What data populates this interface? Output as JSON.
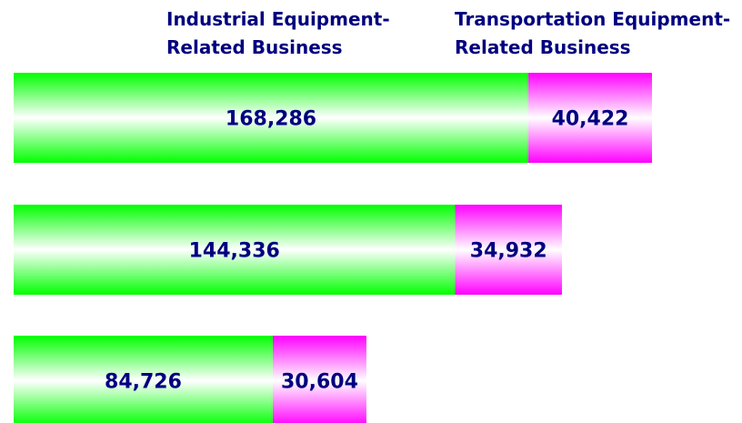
{
  "chart_data": {
    "type": "stacked-bar-horizontal",
    "categories": [
      null,
      null,
      null
    ],
    "series": [
      {
        "name": "Industrial Equipment-\nRelated Business",
        "color": "#00ff00",
        "values": [
          168286,
          144336,
          84726
        ],
        "value_labels": [
          "168,286",
          "144,336",
          "84,726"
        ]
      },
      {
        "name": "Transportation Equipment-\nRelated Business",
        "color": "#ff00ff",
        "values": [
          40422,
          34932,
          30604
        ],
        "value_labels": [
          "40,422",
          "34,932",
          "30,604"
        ]
      }
    ]
  }
}
